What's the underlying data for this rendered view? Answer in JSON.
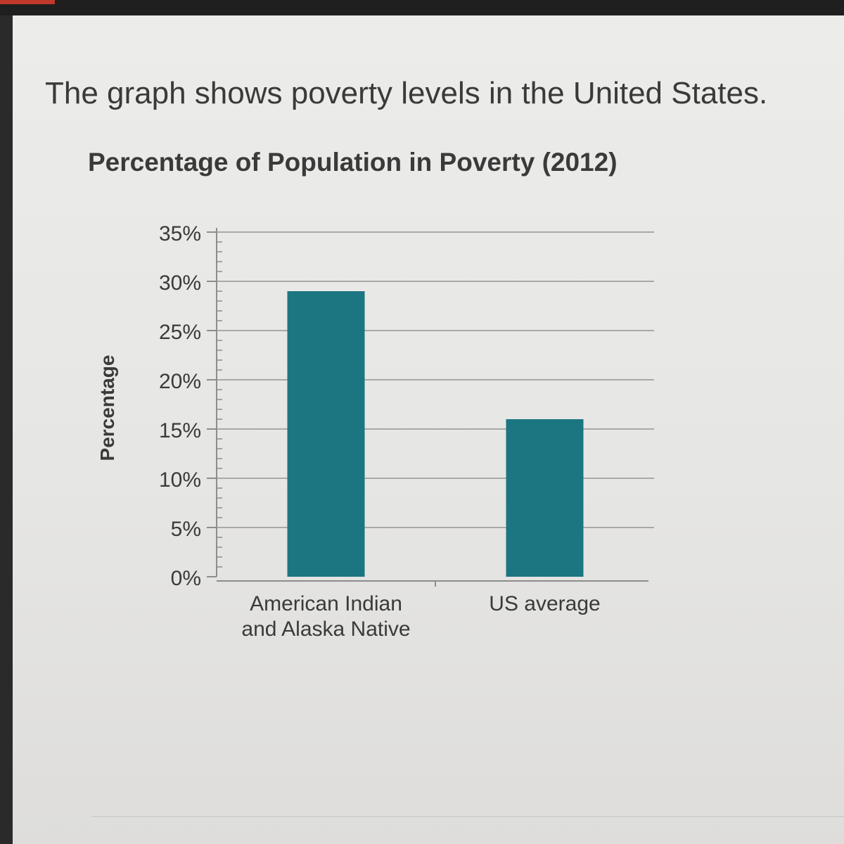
{
  "prompt": "The graph shows poverty levels in the United States.",
  "colors": {
    "bar": "#1b7682",
    "grid": "#a9a9a9",
    "axis": "#8d8d8d",
    "text": "#3a3a3a"
  },
  "chart_data": {
    "type": "bar",
    "title": "Percentage of Population in Poverty (2012)",
    "xlabel": "",
    "ylabel": "Percentage",
    "ylim": [
      0,
      35
    ],
    "yticks": [
      0,
      5,
      10,
      15,
      20,
      25,
      30,
      35
    ],
    "ytick_labels": [
      "0%",
      "5%",
      "10%",
      "15%",
      "20%",
      "25%",
      "30%",
      "35%"
    ],
    "grid": true,
    "categories": [
      [
        "American Indian",
        "and Alaska Native"
      ],
      [
        "US average"
      ]
    ],
    "values": [
      29,
      16
    ]
  }
}
